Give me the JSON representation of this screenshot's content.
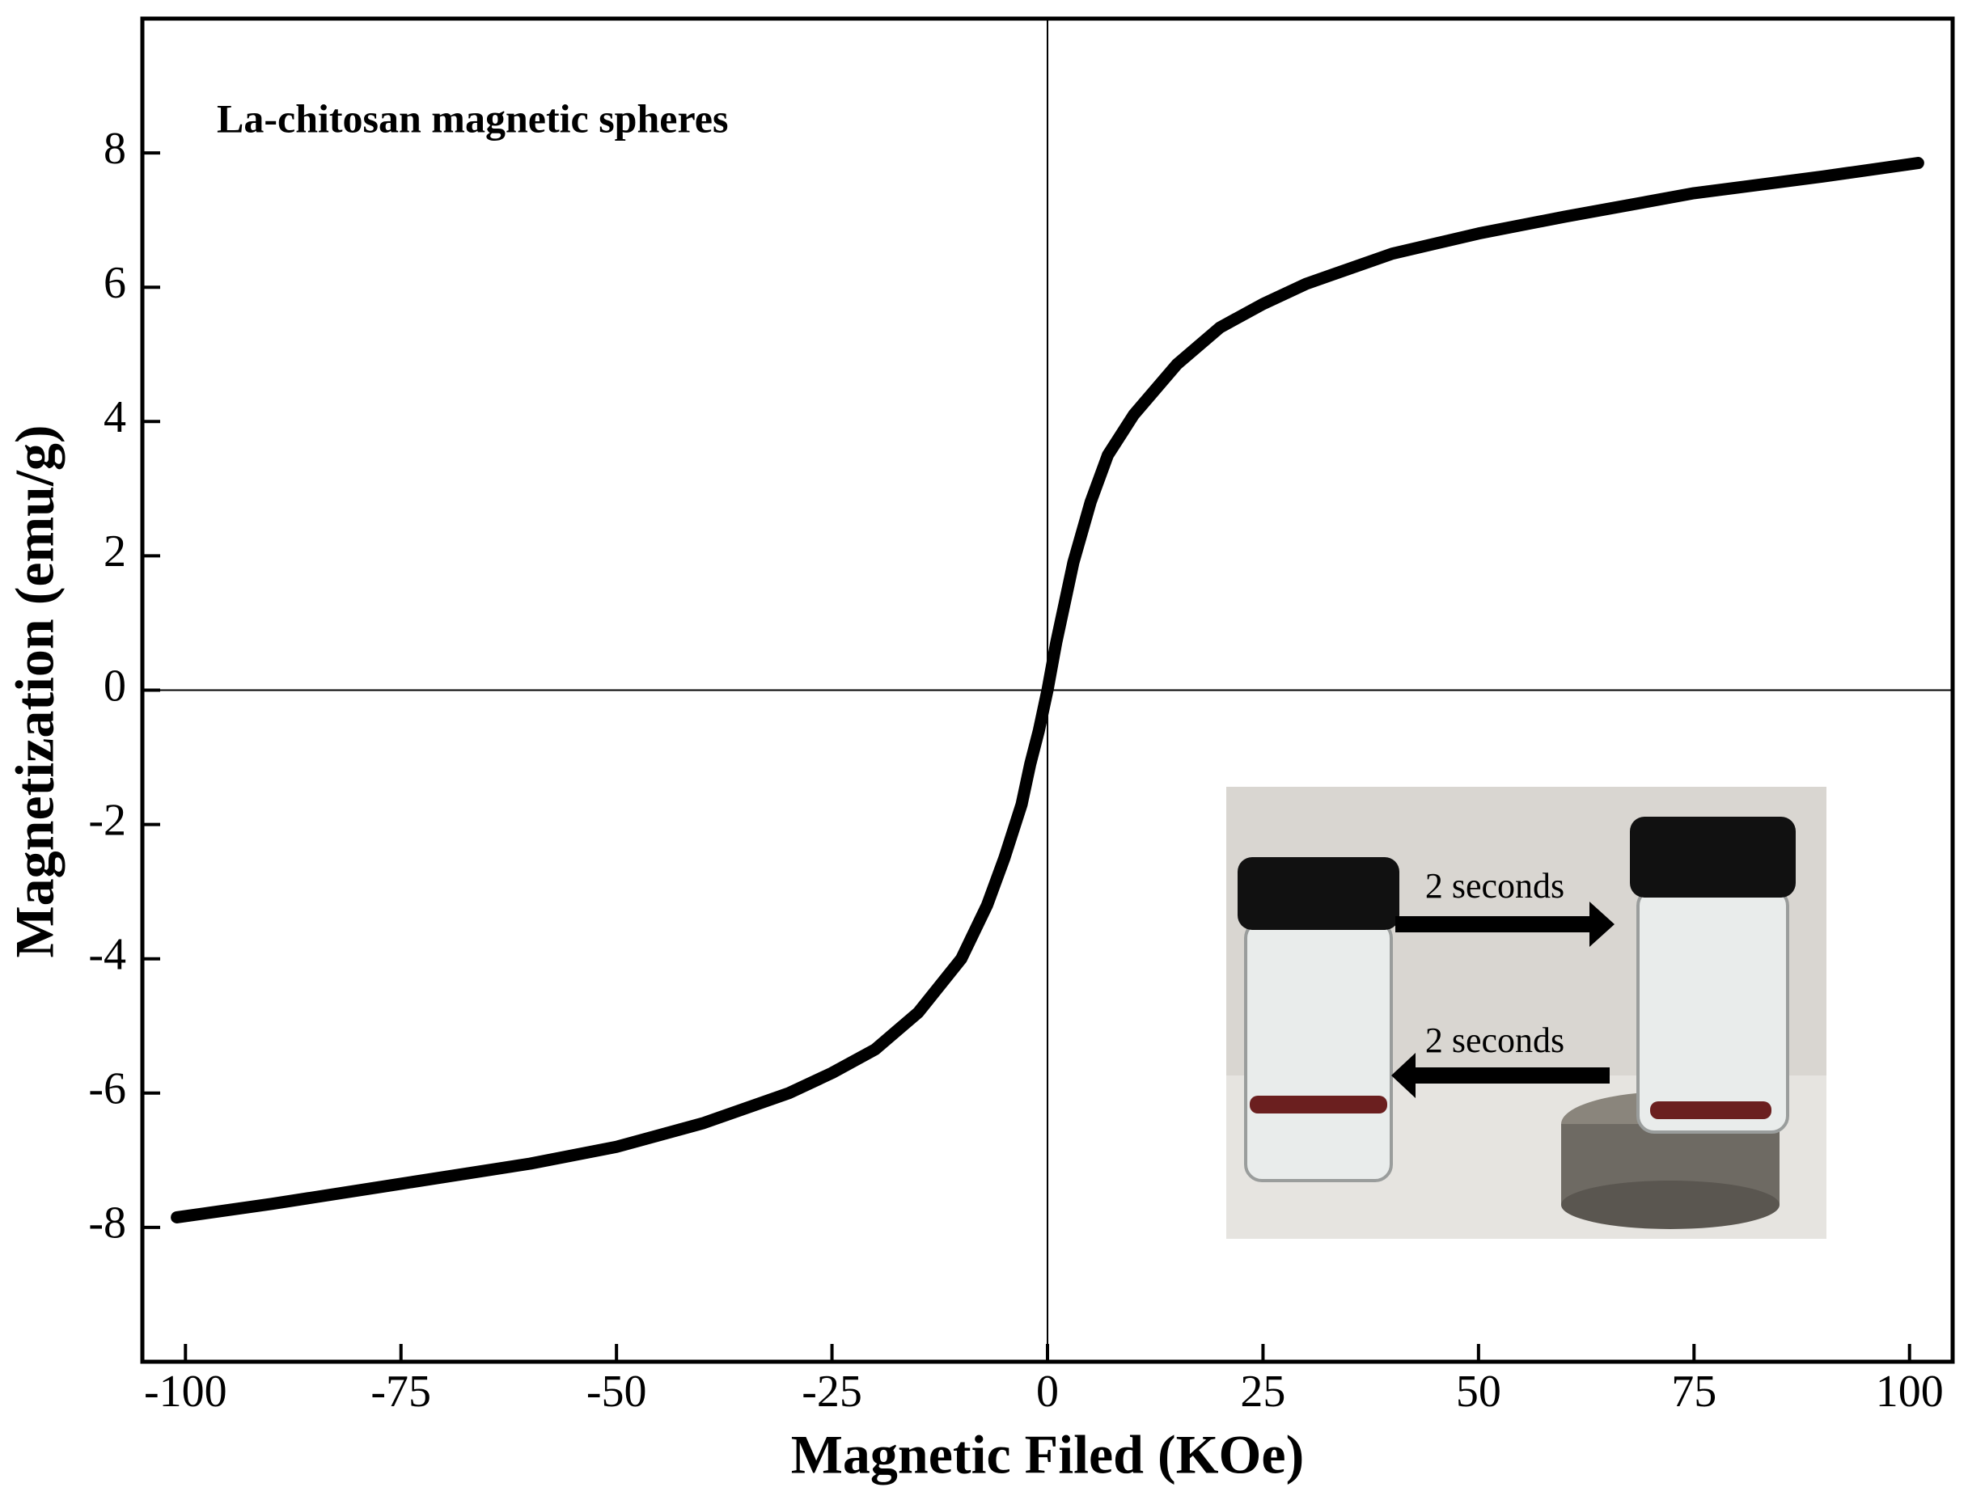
{
  "chart_data": {
    "type": "line",
    "title": "La-chitosan magnetic spheres",
    "x_label": "Magnetic Filed (KOe)",
    "y_label": "Magnetization (emu/g)",
    "x": [
      -101,
      -90,
      -75,
      -60,
      -50,
      -40,
      -30,
      -25,
      -20,
      -15,
      -10,
      -7,
      -5,
      -3,
      -2,
      -1,
      0,
      1,
      2,
      3,
      5,
      7,
      10,
      15,
      20,
      25,
      30,
      40,
      50,
      60,
      75,
      90,
      101
    ],
    "series": [
      {
        "color": "#000000",
        "values": [
          -7.85,
          -7.65,
          -7.35,
          -7.05,
          -6.8,
          -6.45,
          -6.0,
          -5.7,
          -5.35,
          -4.8,
          -4.0,
          -3.2,
          -2.5,
          -1.7,
          -1.1,
          -0.6,
          0,
          0.7,
          1.3,
          1.9,
          2.8,
          3.5,
          4.1,
          4.85,
          5.4,
          5.75,
          6.05,
          6.5,
          6.8,
          7.05,
          7.4,
          7.65,
          7.85
        ]
      }
    ],
    "xlim": [
      -105,
      105
    ],
    "xticks": [
      -100,
      -75,
      -50,
      -25,
      0,
      25,
      50,
      75,
      100
    ],
    "ylim": [
      -10,
      10
    ],
    "yticks": [
      -8,
      -6,
      -4,
      -2,
      0,
      2,
      4,
      6,
      8
    ],
    "inset_annotations": [
      "2 seconds",
      "2 seconds"
    ]
  }
}
